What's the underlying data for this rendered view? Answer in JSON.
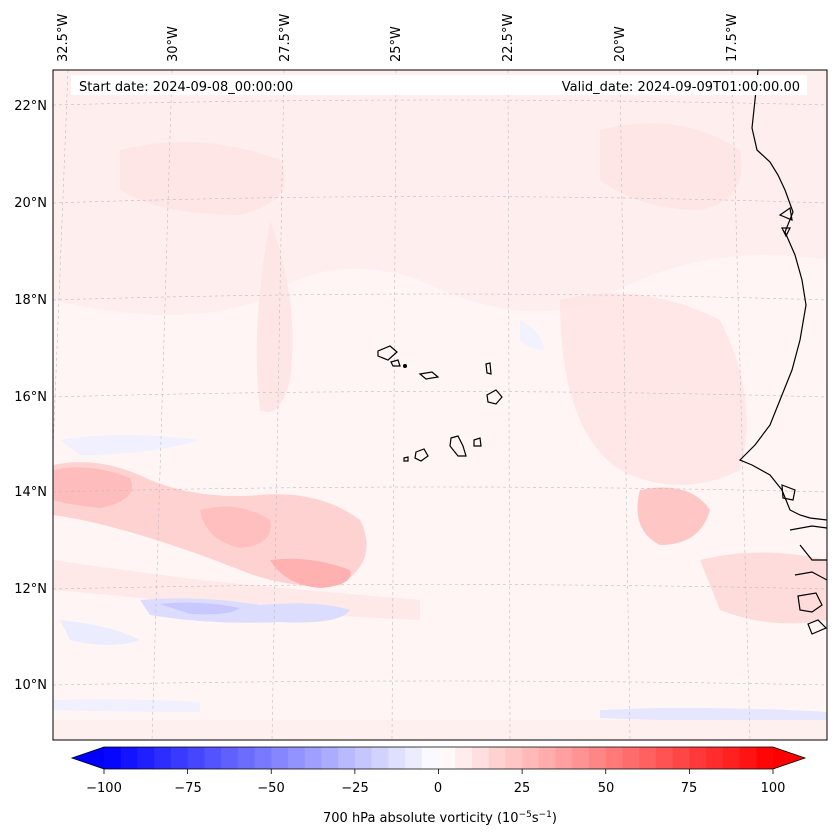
{
  "map": {
    "start_date": "Start date: 2024-09-08_00:00:00",
    "valid_date": "Valid_date: 2024-09-09T01:00:00.00",
    "lon_labels": [
      "32.5°W",
      "30°W",
      "27.5°W",
      "25°W",
      "22.5°W",
      "20°W",
      "17.5°W"
    ],
    "lat_labels": [
      "22°N",
      "20°N",
      "18°N",
      "16°N",
      "14°N",
      "12°N",
      "10°N"
    ]
  },
  "colorbar": {
    "ticks": [
      "−100",
      "−75",
      "−50",
      "−25",
      "0",
      "25",
      "50",
      "75",
      "100"
    ],
    "label_main": "700 hPa absolute vorticity (10",
    "label_sup1": "−5",
    "label_mid": "s",
    "label_sup2": "−1",
    "label_end": ")",
    "min_value": -100,
    "max_value": 100,
    "steps": 40,
    "colors": {
      "negative": "#0000ff",
      "zero": "#ffffff",
      "positive": "#ff0000"
    }
  }
}
